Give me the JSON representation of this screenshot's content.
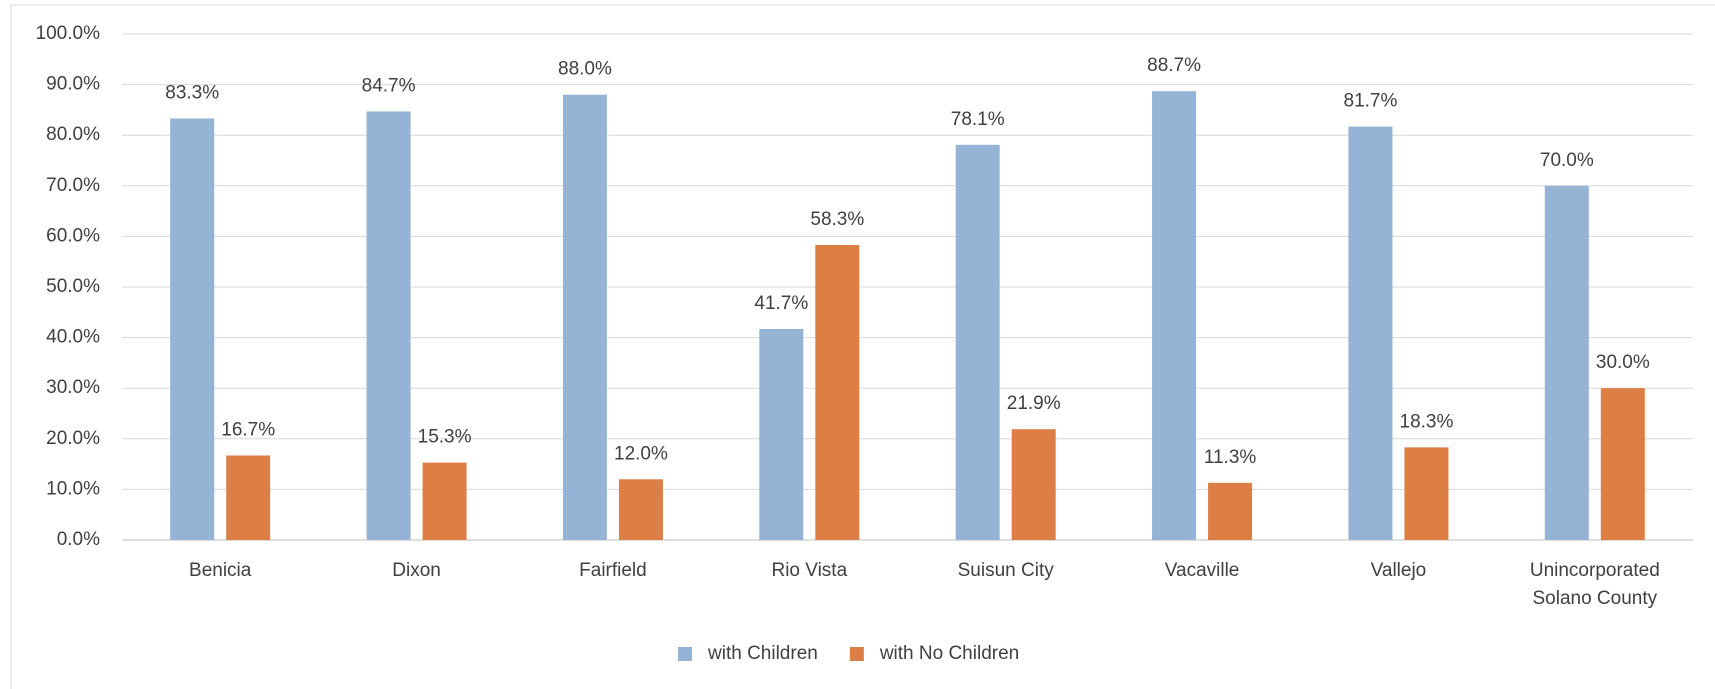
{
  "chart_data": {
    "type": "bar",
    "categories": [
      "Benicia",
      "Dixon",
      "Fairfield",
      "Rio Vista",
      "Suisun City",
      "Vacaville",
      "Vallejo",
      "Unincorporated Solano County"
    ],
    "series": [
      {
        "name": "with Children",
        "color": "#95b3d4",
        "values": [
          83.3,
          84.7,
          88.0,
          41.7,
          78.1,
          88.7,
          81.7,
          70.0
        ],
        "value_labels": [
          "83.3%",
          "84.7%",
          "88.0%",
          "41.7%",
          "78.1%",
          "88.7%",
          "81.7%",
          "70.0%"
        ]
      },
      {
        "name": "with No Children",
        "color": "#dd7f45",
        "values": [
          16.7,
          15.3,
          12.0,
          58.3,
          21.9,
          11.3,
          18.3,
          30.0
        ],
        "value_labels": [
          "16.7%",
          "15.3%",
          "12.0%",
          "58.3%",
          "21.9%",
          "11.3%",
          "18.3%",
          "30.0%"
        ]
      }
    ],
    "ylim": [
      0,
      100
    ],
    "yticks": [
      {
        "value": 0,
        "label": "0.0%"
      },
      {
        "value": 10,
        "label": "10.0%"
      },
      {
        "value": 20,
        "label": "20.0%"
      },
      {
        "value": 30,
        "label": "30.0%"
      },
      {
        "value": 40,
        "label": "40.0%"
      },
      {
        "value": 50,
        "label": "50.0%"
      },
      {
        "value": 60,
        "label": "60.0%"
      },
      {
        "value": 70,
        "label": "70.0%"
      },
      {
        "value": 80,
        "label": "80.0%"
      },
      {
        "value": 90,
        "label": "90.0%"
      },
      {
        "value": 100,
        "label": "100.0%"
      }
    ],
    "grid": true,
    "legend": "bottom"
  }
}
